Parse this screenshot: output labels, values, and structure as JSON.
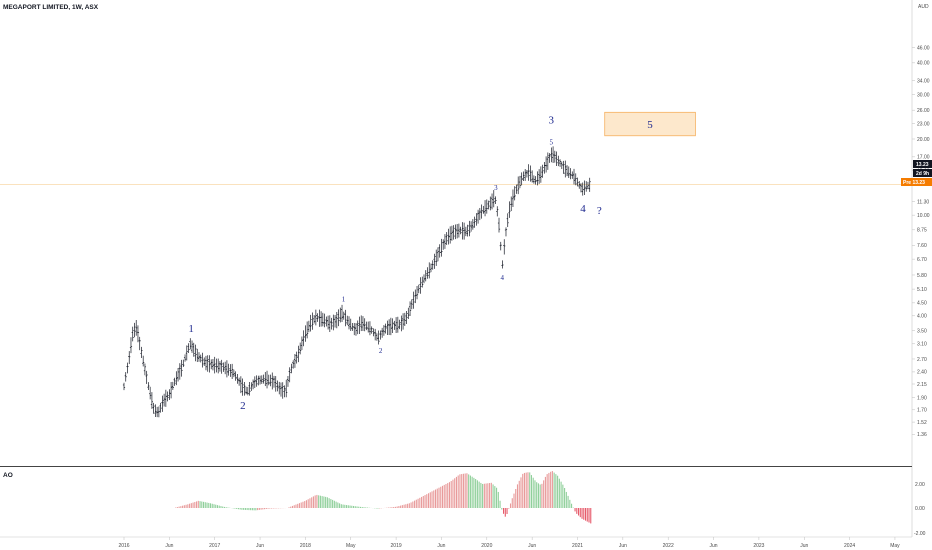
{
  "header": {
    "symbol_line": "MEGAPORT LIMITED, 1W, ASX",
    "currency": "AUD"
  },
  "indicator": {
    "label": "AO",
    "ticks": [
      "2.00",
      "0.00",
      "-2.00"
    ]
  },
  "price_tags": {
    "last": "13.23",
    "timer": "2d 9h",
    "pre": "Pre 13.23"
  },
  "target_box": {
    "label": "5",
    "fill": "#fde8cc",
    "stroke": "#f5b060"
  },
  "colors": {
    "line": "#f8d9a8",
    "wave_text": "#1f2a8f",
    "ao_up": "#e89a9a",
    "ao_down": "#8fcf9a",
    "ao_neg": "#e65a6a"
  },
  "chart_data": {
    "type": "bar",
    "price_axis": {
      "scale": "log",
      "ticks": [
        1.36,
        1.52,
        1.7,
        1.9,
        2.15,
        2.4,
        2.7,
        3.1,
        3.5,
        4.0,
        4.5,
        5.1,
        5.8,
        6.7,
        7.6,
        8.75,
        10.0,
        11.3,
        13.23,
        15.0,
        17.0,
        20.0,
        23.0,
        26.0,
        30.0,
        34.0,
        40.0,
        46.0
      ]
    },
    "time_axis": {
      "ticks": [
        "2016",
        "Jun",
        "2017",
        "Jun",
        "2018",
        "May",
        "2019",
        "Jun",
        "2020",
        "Jun",
        "2021",
        "Jun",
        "2022",
        "Jun",
        "2023",
        "Jun",
        "2024",
        "May"
      ]
    },
    "price_path": [
      [
        2016.0,
        2.1
      ],
      [
        2016.05,
        2.6
      ],
      [
        2016.1,
        3.45
      ],
      [
        2016.14,
        3.6
      ],
      [
        2016.18,
        3.0
      ],
      [
        2016.22,
        2.55
      ],
      [
        2016.27,
        2.1
      ],
      [
        2016.33,
        1.7
      ],
      [
        2016.38,
        1.65
      ],
      [
        2016.44,
        1.85
      ],
      [
        2016.5,
        1.95
      ],
      [
        2016.56,
        2.2
      ],
      [
        2016.64,
        2.5
      ],
      [
        2016.73,
        3.1
      ],
      [
        2016.8,
        2.8
      ],
      [
        2016.9,
        2.6
      ],
      [
        2017.0,
        2.55
      ],
      [
        2017.1,
        2.5
      ],
      [
        2017.2,
        2.4
      ],
      [
        2017.3,
        2.1
      ],
      [
        2017.36,
        2.0
      ],
      [
        2017.45,
        2.2
      ],
      [
        2017.55,
        2.25
      ],
      [
        2017.65,
        2.2
      ],
      [
        2017.72,
        2.05
      ],
      [
        2017.78,
        2.0
      ],
      [
        2017.85,
        2.5
      ],
      [
        2017.92,
        2.8
      ],
      [
        2018.0,
        3.4
      ],
      [
        2018.06,
        3.75
      ],
      [
        2018.12,
        3.95
      ],
      [
        2018.2,
        3.85
      ],
      [
        2018.28,
        3.7
      ],
      [
        2018.35,
        3.85
      ],
      [
        2018.4,
        4.1
      ],
      [
        2018.48,
        3.75
      ],
      [
        2018.55,
        3.5
      ],
      [
        2018.62,
        3.75
      ],
      [
        2018.72,
        3.55
      ],
      [
        2018.8,
        3.25
      ],
      [
        2018.88,
        3.55
      ],
      [
        2018.96,
        3.65
      ],
      [
        2019.05,
        3.7
      ],
      [
        2019.12,
        3.95
      ],
      [
        2019.18,
        4.5
      ],
      [
        2019.25,
        5.1
      ],
      [
        2019.32,
        5.7
      ],
      [
        2019.4,
        6.3
      ],
      [
        2019.48,
        7.2
      ],
      [
        2019.56,
        8.1
      ],
      [
        2019.62,
        8.5
      ],
      [
        2019.7,
        8.7
      ],
      [
        2019.78,
        8.6
      ],
      [
        2019.86,
        9.3
      ],
      [
        2019.94,
        10.3
      ],
      [
        2020.0,
        10.8
      ],
      [
        2020.05,
        11.2
      ],
      [
        2020.09,
        11.8
      ],
      [
        2020.13,
        9.5
      ],
      [
        2020.17,
        6.2
      ],
      [
        2020.21,
        8.5
      ],
      [
        2020.25,
        10.5
      ],
      [
        2020.3,
        12.0
      ],
      [
        2020.35,
        13.2
      ],
      [
        2020.4,
        14.2
      ],
      [
        2020.47,
        14.8
      ],
      [
        2020.53,
        13.6
      ],
      [
        2020.6,
        14.5
      ],
      [
        2020.66,
        16.0
      ],
      [
        2020.72,
        17.5
      ],
      [
        2020.78,
        16.5
      ],
      [
        2020.84,
        15.5
      ],
      [
        2020.9,
        14.8
      ],
      [
        2020.96,
        14.2
      ],
      [
        2021.0,
        13.5
      ],
      [
        2021.05,
        12.6
      ],
      [
        2021.1,
        13.0
      ],
      [
        2021.15,
        13.23
      ]
    ],
    "ao_path": [
      [
        2016.55,
        0.0
      ],
      [
        2016.7,
        0.3
      ],
      [
        2016.82,
        0.6
      ],
      [
        2016.95,
        0.4
      ],
      [
        2017.1,
        0.1
      ],
      [
        2017.3,
        -0.15
      ],
      [
        2017.45,
        -0.2
      ],
      [
        2017.6,
        -0.05
      ],
      [
        2017.8,
        0.0
      ],
      [
        2018.0,
        0.6
      ],
      [
        2018.12,
        1.1
      ],
      [
        2018.24,
        0.9
      ],
      [
        2018.4,
        0.3
      ],
      [
        2018.6,
        0.1
      ],
      [
        2018.8,
        -0.05
      ],
      [
        2019.0,
        0.1
      ],
      [
        2019.15,
        0.4
      ],
      [
        2019.3,
        1.0
      ],
      [
        2019.45,
        1.6
      ],
      [
        2019.6,
        2.2
      ],
      [
        2019.7,
        2.8
      ],
      [
        2019.78,
        2.9
      ],
      [
        2019.88,
        2.4
      ],
      [
        2019.95,
        2.0
      ],
      [
        2020.05,
        2.1
      ],
      [
        2020.12,
        1.6
      ],
      [
        2020.17,
        -0.3
      ],
      [
        2020.21,
        -0.8
      ],
      [
        2020.28,
        0.8
      ],
      [
        2020.34,
        2.0
      ],
      [
        2020.4,
        2.9
      ],
      [
        2020.47,
        3.0
      ],
      [
        2020.54,
        2.2
      ],
      [
        2020.6,
        1.9
      ],
      [
        2020.66,
        2.8
      ],
      [
        2020.72,
        3.1
      ],
      [
        2020.78,
        2.7
      ],
      [
        2020.85,
        1.8
      ],
      [
        2020.92,
        0.6
      ],
      [
        2020.98,
        -0.4
      ],
      [
        2021.05,
        -0.9
      ],
      [
        2021.15,
        -1.3
      ]
    ],
    "wave_labels": [
      {
        "text": "1",
        "x": 2016.74,
        "y": 3.45,
        "size": "big"
      },
      {
        "text": "2",
        "x": 2017.31,
        "y": 1.71,
        "size": "big"
      },
      {
        "text": "1",
        "x": 2018.42,
        "y": 4.55,
        "size": "small"
      },
      {
        "text": "2",
        "x": 2018.83,
        "y": 2.85,
        "size": "small"
      },
      {
        "text": "3",
        "x": 2020.1,
        "y": 12.6,
        "size": "small"
      },
      {
        "text": "4",
        "x": 2020.17,
        "y": 5.55,
        "size": "small"
      },
      {
        "text": "5",
        "x": 2020.71,
        "y": 19.0,
        "size": "small"
      },
      {
        "text": "3",
        "x": 2020.71,
        "y": 23.0,
        "size": "big"
      },
      {
        "text": "4",
        "x": 2021.06,
        "y": 10.3,
        "size": "big"
      },
      {
        "text": "?",
        "x": 2021.24,
        "y": 10.1,
        "size": "big"
      }
    ],
    "target_zone": {
      "x_from": 2021.3,
      "x_to": 2022.3,
      "y_low": 20.6,
      "y_high": 25.5
    }
  }
}
